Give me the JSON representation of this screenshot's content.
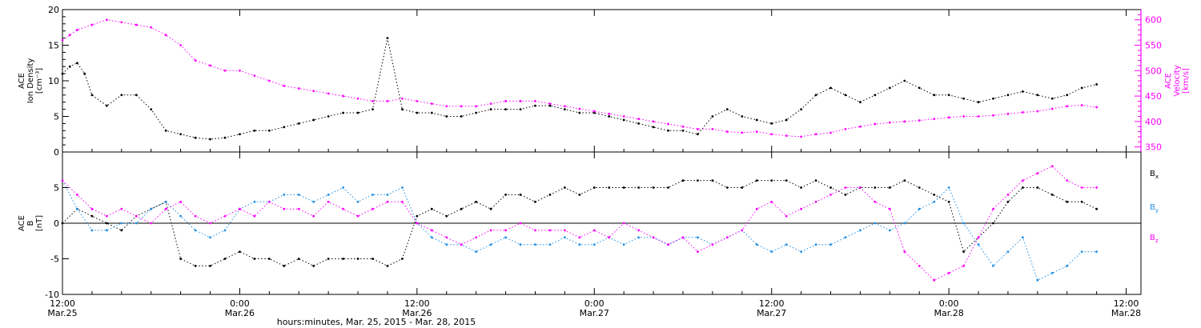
{
  "chart_data": [
    {
      "type": "scatter",
      "panel": "top",
      "ylabel_lines": [
        "ACE",
        "Ion Density",
        "[cm⁻³]"
      ],
      "y2label_lines": [
        "ACE",
        "Velocity",
        "[km/s]"
      ],
      "xlim_hours": [
        0,
        73
      ],
      "ylim": [
        0,
        20
      ],
      "y2lim": [
        340,
        620
      ],
      "yticks": [
        0,
        5,
        10,
        15,
        20
      ],
      "y2ticks": [
        350,
        400,
        450,
        500,
        550,
        600
      ],
      "series": [
        {
          "name": "",
          "color": "#000000",
          "axis": "left",
          "x": [
            0,
            0.5,
            1,
            1.5,
            2,
            3,
            4,
            5,
            6,
            7,
            8,
            9,
            10,
            11,
            12,
            13,
            14,
            15,
            16,
            17,
            18,
            19,
            20,
            21,
            22,
            23,
            24,
            25,
            26,
            27,
            28,
            29,
            30,
            31,
            32,
            33,
            34,
            35,
            36,
            37,
            38,
            39,
            40,
            41,
            42,
            43,
            44,
            45,
            46,
            47,
            48,
            49,
            50,
            51,
            52,
            53,
            54,
            55,
            56,
            57,
            58,
            59,
            60,
            61,
            62,
            63,
            64,
            65,
            66,
            67,
            68,
            69,
            70
          ],
          "y": [
            11,
            12,
            12.5,
            11,
            8,
            6.5,
            8,
            8,
            6,
            3,
            2.5,
            2,
            1.8,
            2,
            2.5,
            3,
            3,
            3.5,
            4,
            4.5,
            5,
            5.5,
            5.5,
            6,
            16,
            6,
            5.5,
            5.5,
            5,
            5,
            5.5,
            6,
            6,
            6,
            6.5,
            6.5,
            6,
            5.5,
            5.5,
            5,
            4.5,
            4,
            3.5,
            3,
            3,
            2.5,
            5,
            6,
            5,
            4.5,
            4,
            4.5,
            6,
            8,
            9,
            8,
            7,
            8,
            9,
            10,
            9,
            8,
            8,
            7.5,
            7,
            7.5,
            8,
            8.5,
            8,
            7.5,
            8,
            9,
            9.5
          ]
        },
        {
          "name": "",
          "color": "#ff00ff",
          "axis": "right",
          "x": [
            0,
            0.5,
            1,
            2,
            3,
            4,
            5,
            6,
            7,
            8,
            9,
            10,
            11,
            12,
            13,
            14,
            15,
            16,
            17,
            18,
            19,
            20,
            21,
            22,
            23,
            24,
            25,
            26,
            27,
            28,
            29,
            30,
            31,
            32,
            33,
            34,
            35,
            36,
            37,
            38,
            39,
            40,
            41,
            42,
            43,
            44,
            45,
            46,
            47,
            48,
            49,
            50,
            51,
            52,
            53,
            54,
            55,
            56,
            57,
            58,
            59,
            60,
            61,
            62,
            63,
            64,
            65,
            66,
            67,
            68,
            69,
            70
          ],
          "y": [
            560,
            570,
            580,
            590,
            600,
            595,
            590,
            585,
            570,
            550,
            520,
            510,
            500,
            500,
            490,
            480,
            470,
            465,
            460,
            455,
            450,
            445,
            440,
            440,
            445,
            440,
            435,
            430,
            430,
            430,
            435,
            440,
            440,
            440,
            435,
            430,
            425,
            420,
            415,
            410,
            405,
            400,
            395,
            390,
            385,
            385,
            380,
            378,
            380,
            375,
            372,
            370,
            375,
            378,
            385,
            390,
            395,
            398,
            400,
            402,
            405,
            408,
            410,
            410,
            412,
            415,
            418,
            420,
            425,
            430,
            432,
            428
          ]
        }
      ]
    },
    {
      "type": "scatter",
      "panel": "bottom",
      "ylabel_lines": [
        "ACE",
        "B",
        "[nT]"
      ],
      "xlim_hours": [
        0,
        73
      ],
      "ylim": [
        -10,
        10
      ],
      "yticks": [
        -10,
        -5,
        0,
        5,
        10
      ],
      "legend_position": "right",
      "series": [
        {
          "name": "Bx",
          "label_main": "B",
          "label_sub": "x",
          "color": "#000000",
          "x": [
            0,
            1,
            2,
            3,
            4,
            5,
            6,
            7,
            8,
            9,
            10,
            11,
            12,
            13,
            14,
            15,
            16,
            17,
            18,
            19,
            20,
            21,
            22,
            23,
            24,
            25,
            26,
            27,
            28,
            29,
            30,
            31,
            32,
            33,
            34,
            35,
            36,
            37,
            38,
            39,
            40,
            41,
            42,
            43,
            44,
            45,
            46,
            47,
            48,
            49,
            50,
            51,
            52,
            53,
            54,
            55,
            56,
            57,
            58,
            59,
            60,
            61,
            62,
            63,
            64,
            65,
            66,
            67,
            68,
            69,
            70
          ],
          "y": [
            0,
            2,
            1,
            0,
            -1,
            1,
            2,
            3,
            -5,
            -6,
            -6,
            -5,
            -4,
            -5,
            -5,
            -6,
            -5,
            -6,
            -5,
            -5,
            -5,
            -5,
            -6,
            -5,
            1,
            2,
            1,
            2,
            3,
            2,
            4,
            4,
            3,
            4,
            5,
            4,
            5,
            5,
            5,
            5,
            5,
            5,
            6,
            6,
            6,
            5,
            5,
            6,
            6,
            6,
            5,
            6,
            5,
            4,
            5,
            5,
            5,
            6,
            5,
            4,
            3,
            -4,
            -2,
            0,
            3,
            5,
            5,
            4,
            3,
            3,
            2
          ]
        },
        {
          "name": "By",
          "label_main": "B",
          "label_sub": "y",
          "color": "#1f8fe6",
          "x": [
            0,
            1,
            2,
            3,
            4,
            5,
            6,
            7,
            8,
            9,
            10,
            11,
            12,
            13,
            14,
            15,
            16,
            17,
            18,
            19,
            20,
            21,
            22,
            23,
            24,
            25,
            26,
            27,
            28,
            29,
            30,
            31,
            32,
            33,
            34,
            35,
            36,
            37,
            38,
            39,
            40,
            41,
            42,
            43,
            44,
            45,
            46,
            47,
            48,
            49,
            50,
            51,
            52,
            53,
            54,
            55,
            56,
            57,
            58,
            59,
            60,
            61,
            62,
            63,
            64,
            65,
            66,
            67,
            68,
            69,
            70
          ],
          "y": [
            6,
            2,
            -1,
            -1,
            0,
            0,
            2,
            3,
            1,
            -1,
            -2,
            -1,
            2,
            3,
            3,
            4,
            4,
            3,
            4,
            5,
            3,
            4,
            4,
            5,
            0,
            -2,
            -3,
            -3,
            -4,
            -3,
            -2,
            -3,
            -3,
            -3,
            -2,
            -3,
            -3,
            -2,
            -3,
            -2,
            -2,
            -3,
            -2,
            -2,
            -3,
            -2,
            -1,
            -3,
            -4,
            -3,
            -4,
            -3,
            -3,
            -2,
            -1,
            0,
            -1,
            0,
            2,
            3,
            5,
            0,
            -3,
            -6,
            -4,
            -2,
            -8,
            -7,
            -6,
            -4,
            -4
          ]
        },
        {
          "name": "Bz",
          "label_main": "B",
          "label_sub": "z",
          "color": "#ff00ff",
          "x": [
            0,
            1,
            2,
            3,
            4,
            5,
            6,
            7,
            8,
            9,
            10,
            11,
            12,
            13,
            14,
            15,
            16,
            17,
            18,
            19,
            20,
            21,
            22,
            23,
            24,
            25,
            26,
            27,
            28,
            29,
            30,
            31,
            32,
            33,
            34,
            35,
            36,
            37,
            38,
            39,
            40,
            41,
            42,
            43,
            44,
            45,
            46,
            47,
            48,
            49,
            50,
            51,
            52,
            53,
            54,
            55,
            56,
            57,
            58,
            59,
            60,
            61,
            62,
            63,
            64,
            65,
            66,
            67,
            68,
            69,
            70
          ],
          "y": [
            6,
            4,
            2,
            1,
            2,
            1,
            0,
            2,
            3,
            1,
            0,
            1,
            2,
            1,
            3,
            2,
            2,
            1,
            3,
            2,
            1,
            2,
            3,
            3,
            0,
            -1,
            -2,
            -3,
            -2,
            -1,
            -1,
            0,
            -1,
            -1,
            -1,
            -2,
            -1,
            -2,
            0,
            -1,
            -2,
            -3,
            -2,
            -4,
            -3,
            -2,
            -1,
            2,
            3,
            1,
            2,
            3,
            4,
            5,
            5,
            3,
            2,
            -4,
            -6,
            -8,
            -7,
            -6,
            -2,
            2,
            4,
            6,
            7,
            8,
            6,
            5,
            5
          ]
        }
      ]
    }
  ],
  "x_axis": {
    "ticks": [
      {
        "hour": 0,
        "time": "12:00",
        "date": "Mar.25"
      },
      {
        "hour": 12,
        "time": "0:00",
        "date": "Mar.26"
      },
      {
        "hour": 24,
        "time": "12:00",
        "date": "Mar.26"
      },
      {
        "hour": 36,
        "time": "0:00",
        "date": "Mar.27"
      },
      {
        "hour": 48,
        "time": "12:00",
        "date": "Mar.27"
      },
      {
        "hour": 60,
        "time": "0:00",
        "date": "Mar.28"
      },
      {
        "hour": 72,
        "time": "12:00",
        "date": "Mar.28"
      }
    ],
    "label": "hours:minutes, Mar. 25, 2015 - Mar. 28, 2015"
  },
  "colors": {
    "axis": "#000000",
    "velocity_axis": "#ff00ff",
    "bx": "#000000",
    "by": "#1f8fe6",
    "bz": "#ff00ff"
  }
}
